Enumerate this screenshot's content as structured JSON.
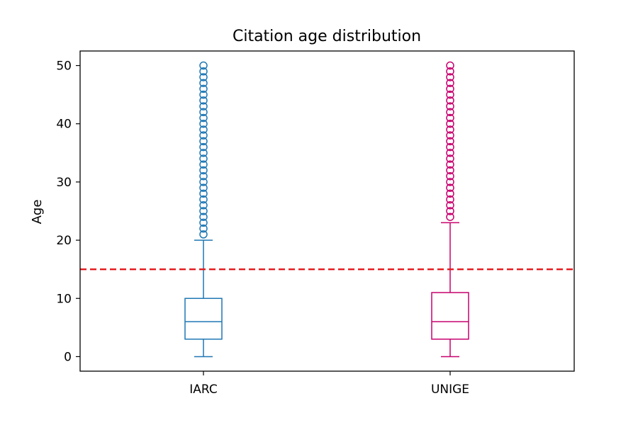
{
  "chart_data": {
    "type": "box",
    "title": "Citation age distribution",
    "xlabel": "",
    "ylabel": "Age",
    "ylim": [
      -2.5,
      52.5
    ],
    "yticks": [
      0,
      10,
      20,
      30,
      40,
      50
    ],
    "grid": false,
    "legend": "none",
    "categories": [
      "IARC",
      "UNIGE"
    ],
    "series": [
      {
        "category": "IARC",
        "color": "#1f77b4",
        "whisker_low": 0,
        "q1": 3,
        "median": 6,
        "q3": 10,
        "whisker_high": 20,
        "outliers": [
          21,
          22,
          23,
          24,
          25,
          26,
          27,
          28,
          29,
          30,
          31,
          32,
          33,
          34,
          35,
          36,
          37,
          38,
          39,
          40,
          41,
          42,
          43,
          44,
          45,
          46,
          47,
          48,
          49,
          50
        ]
      },
      {
        "category": "UNIGE",
        "color": "#c7006e",
        "whisker_low": 0,
        "q1": 3,
        "median": 6,
        "q3": 11,
        "whisker_high": 23,
        "outliers": [
          24,
          25,
          26,
          27,
          28,
          29,
          30,
          31,
          32,
          33,
          34,
          35,
          36,
          37,
          38,
          39,
          40,
          41,
          42,
          43,
          44,
          45,
          46,
          47,
          48,
          49,
          50
        ]
      }
    ],
    "reference_line": {
      "y": 15,
      "color": "#e41a1c",
      "style": "dashed"
    }
  }
}
